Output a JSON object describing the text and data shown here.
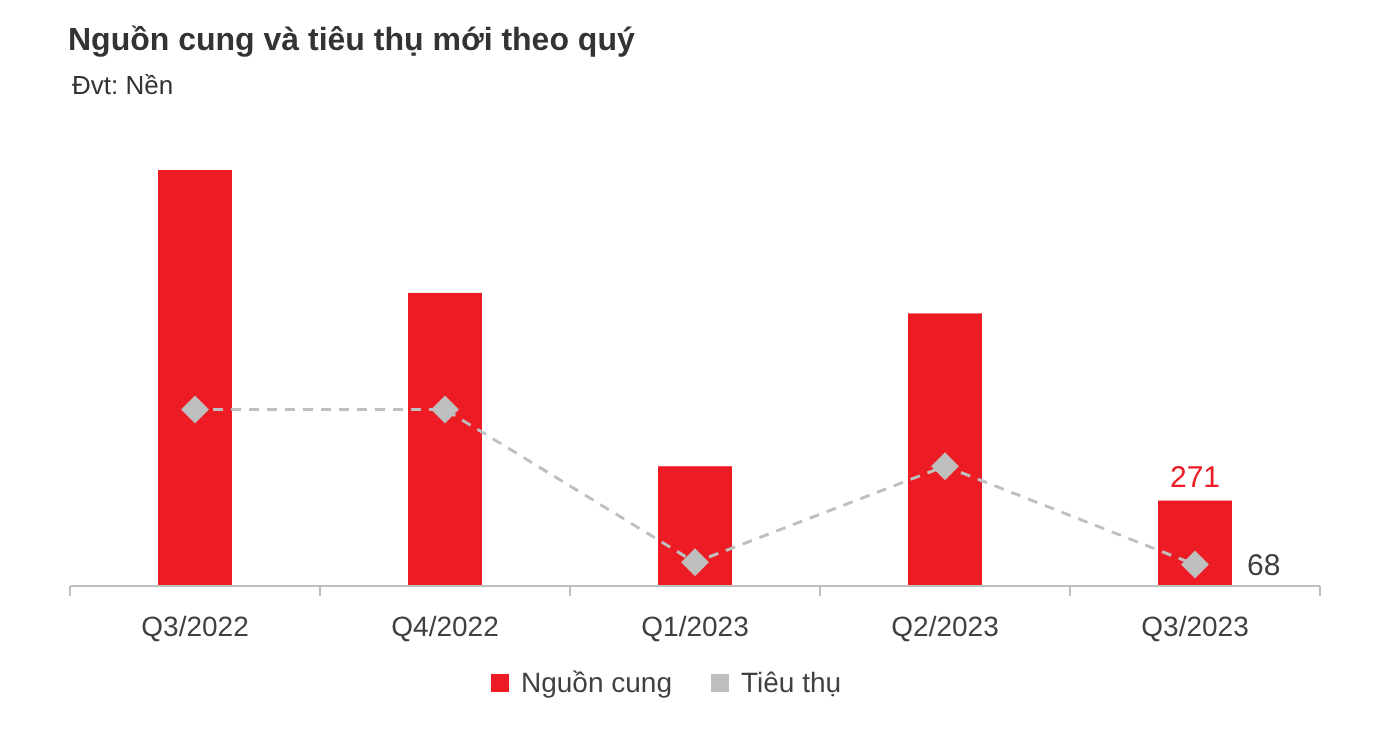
{
  "chart_data": {
    "type": "bar",
    "title": "Nguồn cung và tiêu thụ mới theo quý",
    "subtitle": "Đvt: Nền",
    "categories": [
      "Q3/2022",
      "Q4/2022",
      "Q1/2023",
      "Q2/2023",
      "Q3/2023"
    ],
    "series": [
      {
        "name": "Nguồn cung",
        "color": "#ed1c24",
        "values": [
          1320,
          930,
          380,
          865,
          271
        ],
        "value_labels": [
          null,
          null,
          null,
          null,
          "271"
        ]
      },
      {
        "name": "Tiêu thụ",
        "type": "line",
        "color": "#bfbfbf",
        "values": [
          560,
          560,
          75,
          380,
          68
        ],
        "value_labels": [
          null,
          null,
          null,
          null,
          "68"
        ],
        "marker": "diamond",
        "line_style": "dashed"
      }
    ],
    "legend": "bottom"
  }
}
